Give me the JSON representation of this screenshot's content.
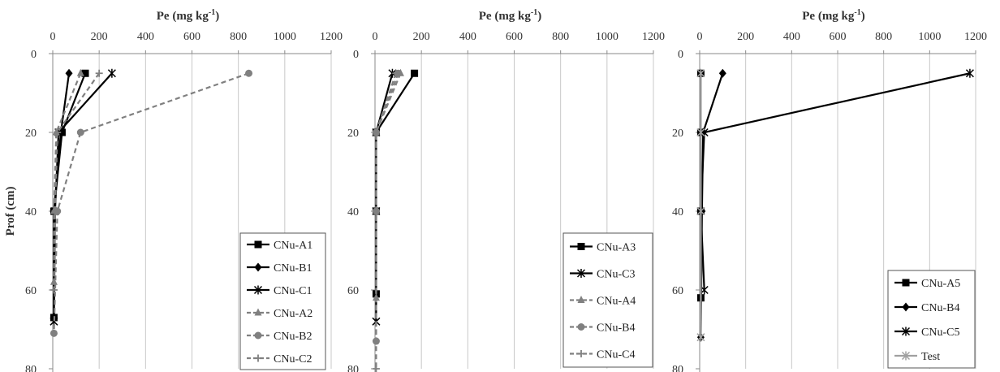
{
  "ylabel": "Prof (cm)",
  "chart_data": [
    {
      "type": "line",
      "title": "Pe (mg kg-1)",
      "xlabel": "Pe (mg kg-1)",
      "ylabel": "Prof (cm)",
      "xlim": [
        0,
        1200
      ],
      "ylim": [
        0,
        80
      ],
      "xticks": [
        "0",
        "200",
        "400",
        "600",
        "800",
        "1000",
        "1200"
      ],
      "yticks": [
        "0",
        "20",
        "40",
        "60",
        "80"
      ],
      "y_inverted": true,
      "grid": "vertical",
      "legend_position": "bottom-right",
      "series": [
        {
          "name": "CNu-A1",
          "style": "solid",
          "marker": "square",
          "color": "#000000",
          "x": [
            140,
            40,
            5,
            5
          ],
          "y": [
            5,
            20,
            40,
            67
          ]
        },
        {
          "name": "CNu-B1",
          "style": "solid",
          "marker": "diamond",
          "color": "#000000",
          "x": [
            70,
            35,
            5,
            5
          ],
          "y": [
            5,
            20,
            40,
            67
          ]
        },
        {
          "name": "CNu-C1",
          "style": "solid",
          "marker": "asterisk",
          "color": "#000000",
          "x": [
            255,
            25,
            10,
            5
          ],
          "y": [
            5,
            20,
            40,
            68
          ]
        },
        {
          "name": "CNu-A2",
          "style": "dashed",
          "marker": "triangle",
          "color": "#808080",
          "x": [
            120,
            15,
            5,
            5
          ],
          "y": [
            5,
            20,
            40,
            58
          ]
        },
        {
          "name": "CNu-B2",
          "style": "dashed",
          "marker": "circle",
          "color": "#808080",
          "x": [
            845,
            120,
            20,
            5
          ],
          "y": [
            5,
            20,
            40,
            71
          ]
        },
        {
          "name": "CNu-C2",
          "style": "dashed",
          "marker": "plus",
          "color": "#808080",
          "x": [
            200,
            20,
            10,
            5
          ],
          "y": [
            5,
            20,
            40,
            60
          ]
        }
      ]
    },
    {
      "type": "line",
      "title": "Pe (mg kg-1)",
      "xlabel": "Pe (mg kg-1)",
      "xlim": [
        0,
        1200
      ],
      "ylim": [
        0,
        80
      ],
      "xticks": [
        "0",
        "200",
        "400",
        "600",
        "800",
        "1000",
        "1200"
      ],
      "yticks": [
        "0",
        "20",
        "40",
        "60",
        "80"
      ],
      "y_inverted": true,
      "grid": "vertical",
      "legend_position": "bottom-right",
      "series": [
        {
          "name": "CNu-A3",
          "style": "solid",
          "marker": "square",
          "color": "#000000",
          "x": [
            170,
            5,
            5,
            5
          ],
          "y": [
            5,
            20,
            40,
            61
          ]
        },
        {
          "name": "CNu-C3",
          "style": "solid",
          "marker": "asterisk",
          "color": "#000000",
          "x": [
            75,
            5,
            5,
            5
          ],
          "y": [
            5,
            20,
            40,
            68
          ]
        },
        {
          "name": "CNu-A4",
          "style": "dashed",
          "marker": "triangle",
          "color": "#808080",
          "x": [
            110,
            5,
            5,
            5
          ],
          "y": [
            5,
            20,
            40,
            62
          ]
        },
        {
          "name": "CNu-B4",
          "style": "dashed",
          "marker": "circle",
          "color": "#808080",
          "x": [
            100,
            5,
            5,
            5
          ],
          "y": [
            5,
            20,
            40,
            73
          ]
        },
        {
          "name": "CNu-C4",
          "style": "dashed",
          "marker": "plus",
          "color": "#808080",
          "x": [
            90,
            5,
            5,
            5
          ],
          "y": [
            5,
            20,
            40,
            80
          ]
        }
      ]
    },
    {
      "type": "line",
      "title": "Pe (mg kg-1)",
      "xlabel": "Pe (mg kg-1)",
      "xlim": [
        0,
        1200
      ],
      "ylim": [
        0,
        80
      ],
      "xticks": [
        "0",
        "200",
        "400",
        "600",
        "800",
        "1000",
        "1200"
      ],
      "yticks": [
        "0",
        "20",
        "40",
        "60",
        "80"
      ],
      "y_inverted": true,
      "grid": "vertical",
      "legend_position": "bottom-right",
      "series": [
        {
          "name": "CNu-A5",
          "style": "solid",
          "marker": "square",
          "color": "#000000",
          "x": [
            5,
            5,
            5,
            5
          ],
          "y": [
            5,
            20,
            40,
            62
          ]
        },
        {
          "name": "CNu-B4",
          "style": "solid",
          "marker": "diamond",
          "color": "#000000",
          "x": [
            100,
            15,
            10,
            5
          ],
          "y": [
            5,
            20,
            40,
            72
          ]
        },
        {
          "name": "CNu-C5",
          "style": "solid",
          "marker": "asterisk",
          "color": "#000000",
          "x": [
            1175,
            20,
            5,
            20
          ],
          "y": [
            5,
            20,
            40,
            60
          ]
        },
        {
          "name": "Test",
          "style": "solid",
          "marker": "asterisk",
          "color": "#a0a0a0",
          "x": [
            5,
            5,
            5,
            5
          ],
          "y": [
            5,
            20,
            40,
            72
          ]
        }
      ]
    }
  ]
}
